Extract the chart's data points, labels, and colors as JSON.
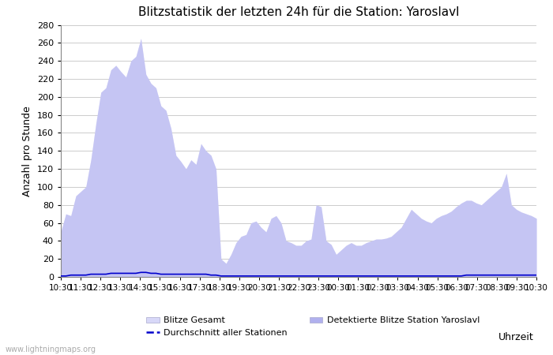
{
  "title": "Blitzstatistik der letzten 24h für die Station: Yaroslavl",
  "xlabel": "Uhrzeit",
  "ylabel": "Anzahl pro Stunde",
  "ylim": [
    0,
    280
  ],
  "yticks": [
    0,
    20,
    40,
    60,
    80,
    100,
    120,
    140,
    160,
    180,
    200,
    220,
    240,
    260,
    280
  ],
  "xtick_labels": [
    "10:30",
    "11:30",
    "12:30",
    "13:30",
    "14:30",
    "15:30",
    "16:30",
    "17:30",
    "18:30",
    "19:30",
    "20:30",
    "21:30",
    "22:30",
    "23:30",
    "00:30",
    "01:30",
    "02:30",
    "03:30",
    "04:30",
    "05:30",
    "06:30",
    "07:30",
    "08:30",
    "09:30",
    "10:30"
  ],
  "background_color": "#ffffff",
  "plot_background": "#ffffff",
  "grid_color": "#cccccc",
  "fill_color_gesamt": "#d8d8f8",
  "fill_color_station": "#b0b0ee",
  "line_color_avg": "#0000cc",
  "watermark": "www.lightningmaps.org",
  "legend_gesamt": "Blitze Gesamt",
  "legend_station": "Detektierte Blitze Station Yaroslavl",
  "legend_avg": "Durchschnitt aller Stationen",
  "gesamt_values": [
    50,
    70,
    68,
    90,
    95,
    100,
    130,
    170,
    205,
    210,
    230,
    235,
    228,
    222,
    240,
    245,
    265,
    225,
    215,
    210,
    190,
    185,
    165,
    135,
    128,
    120,
    130,
    125,
    148,
    140,
    135,
    120,
    20,
    15,
    25,
    38,
    45,
    47,
    60,
    62,
    55,
    50,
    65,
    68,
    60,
    40,
    38,
    35,
    35,
    40,
    42,
    80,
    78,
    40,
    36,
    25,
    30,
    35,
    38,
    35,
    35,
    38,
    40,
    42,
    42,
    43,
    45,
    50,
    55,
    65,
    75,
    70,
    65,
    62,
    60,
    65,
    68,
    70,
    73,
    78,
    82,
    85,
    85,
    82,
    80,
    85,
    90,
    95,
    100,
    115,
    80,
    75,
    72,
    70,
    68,
    65
  ],
  "avg_values": [
    1,
    1,
    2,
    2,
    2,
    2,
    3,
    3,
    3,
    3,
    4,
    4,
    4,
    4,
    4,
    4,
    5,
    5,
    4,
    4,
    3,
    3,
    3,
    3,
    3,
    3,
    3,
    3,
    3,
    3,
    2,
    2,
    1,
    1,
    1,
    1,
    1,
    1,
    1,
    1,
    1,
    1,
    1,
    1,
    1,
    1,
    1,
    1,
    1,
    1,
    1,
    1,
    1,
    1,
    1,
    1,
    1,
    1,
    1,
    1,
    1,
    1,
    1,
    1,
    1,
    1,
    1,
    1,
    1,
    1,
    1,
    1,
    1,
    1,
    1,
    1,
    1,
    1,
    1,
    1,
    1,
    2,
    2,
    2,
    2,
    2,
    2,
    2,
    2,
    2,
    2,
    2,
    2,
    2,
    2,
    2
  ]
}
